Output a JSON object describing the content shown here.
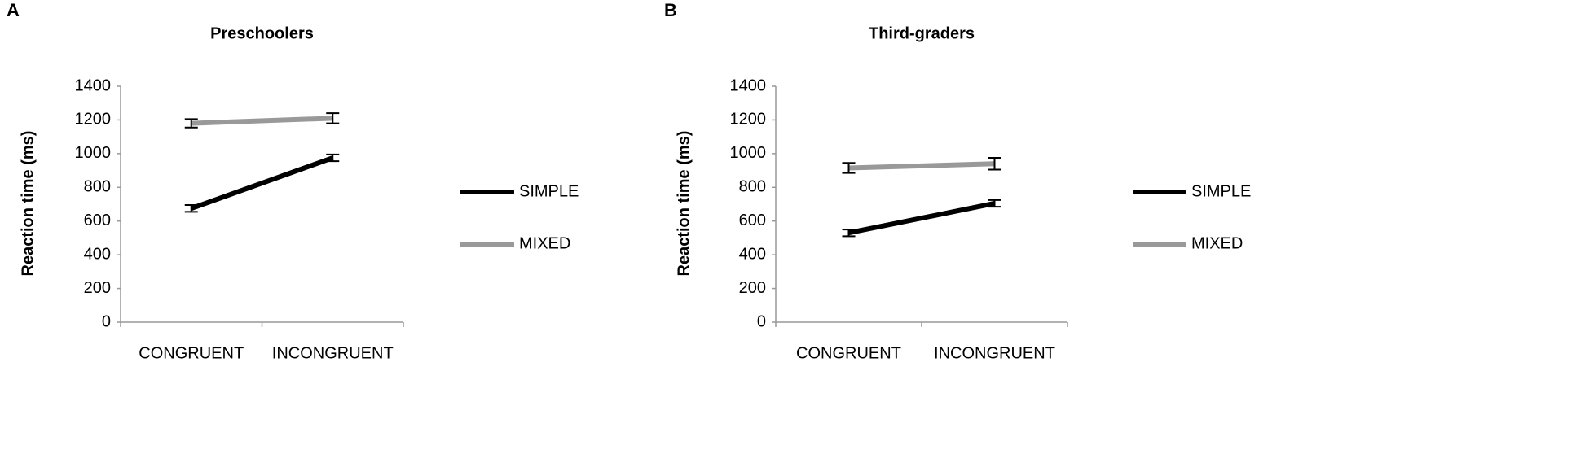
{
  "chart_data": [
    {
      "type": "line",
      "panel": "A",
      "title": "Preschoolers",
      "ylabel": "Reaction time (ms)",
      "categories": [
        "CONGRUENT",
        "INCONGRUENT"
      ],
      "series": [
        {
          "name": "SIMPLE",
          "color": "#000000",
          "values": [
            675,
            975
          ],
          "errors": [
            20,
            20
          ]
        },
        {
          "name": "MIXED",
          "color": "#999999",
          "values": [
            1180,
            1210
          ],
          "errors": [
            25,
            30
          ]
        }
      ],
      "ylim": [
        0,
        1400
      ],
      "yticks": [
        0,
        200,
        400,
        600,
        800,
        1000,
        1200,
        1400
      ],
      "legend": "right"
    },
    {
      "type": "line",
      "panel": "B",
      "title": "Third-graders",
      "ylabel": "Reaction time (ms)",
      "categories": [
        "CONGRUENT",
        "INCONGRUENT"
      ],
      "series": [
        {
          "name": "SIMPLE",
          "color": "#000000",
          "values": [
            530,
            705
          ],
          "errors": [
            20,
            20
          ]
        },
        {
          "name": "MIXED",
          "color": "#999999",
          "values": [
            915,
            940
          ],
          "errors": [
            30,
            35
          ]
        }
      ],
      "ylim": [
        0,
        1400
      ],
      "yticks": [
        0,
        200,
        400,
        600,
        800,
        1000,
        1200,
        1400
      ],
      "legend": "right"
    }
  ]
}
